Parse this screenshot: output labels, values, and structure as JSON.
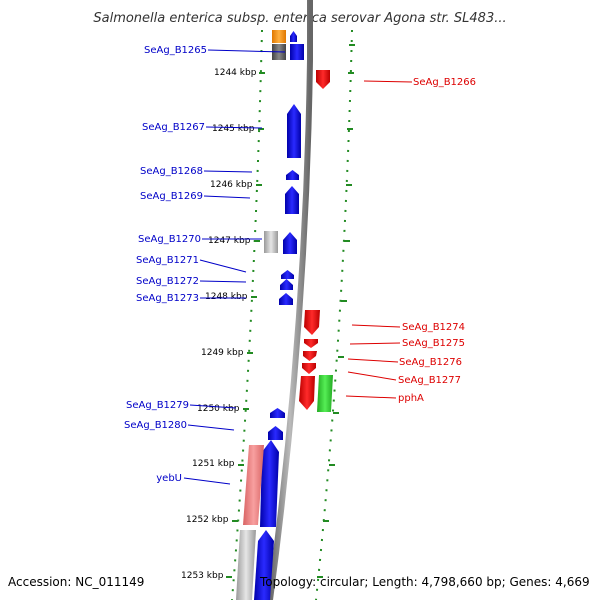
{
  "title": "Salmonella enterica subsp. enterica serovar Agona str. SL483...",
  "accession": "Accession: NC_011149",
  "topology": "Topology: circular; Length: 4,798,660 bp; Genes: 4,669",
  "kbp_labels": [
    "1244 kbp",
    "1245 kbp",
    "1246 kbp",
    "1247 kbp",
    "1248 kbp",
    "1249 kbp",
    "1250 kbp",
    "1251 kbp",
    "1252 kbp",
    "1253 kbp"
  ],
  "left_genes": [
    "SeAg_B1265",
    "SeAg_B1267",
    "SeAg_B1268",
    "SeAg_B1269",
    "SeAg_B1270",
    "SeAg_B1271",
    "SeAg_B1272",
    "SeAg_B1273",
    "SeAg_B1279",
    "SeAg_B1280",
    "yebU"
  ],
  "right_genes": [
    "SeAg_B1266",
    "SeAg_B1274",
    "SeAg_B1275",
    "SeAg_B1276",
    "SeAg_B1277",
    "pphA"
  ],
  "colors": {
    "forward_gene": "#0000ee",
    "reverse_gene": "#ee0000",
    "rna_gene": "#33cc33",
    "pseudo_reverse": "#f08080",
    "other_feature": "#ff9900",
    "misc_feature": "#666666",
    "backbone": "#888888",
    "track_dots": "#228b22",
    "left_label": "#0000c8",
    "right_label": "#dd0000"
  }
}
